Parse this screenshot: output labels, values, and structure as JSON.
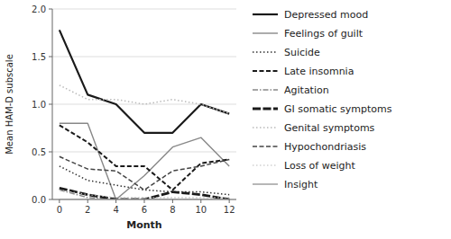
{
  "chart_data": {
    "type": "line",
    "x": [
      0,
      2,
      4,
      6,
      8,
      10,
      12
    ],
    "series": [
      {
        "name": "Depressed mood",
        "color": "#1a1a1a",
        "line_style": "solid",
        "values": [
          1.78,
          1.1,
          1.0,
          0.7,
          0.7,
          1.0,
          0.9
        ]
      },
      {
        "name": "Feelings of guilt",
        "color": "#888888",
        "line_style": "solid",
        "values": [
          0.8,
          0.8,
          0.0,
          0.25,
          0.55,
          0.65,
          0.35
        ]
      },
      {
        "name": "Suicide",
        "color": "#333333",
        "line_style": "dotted",
        "values": [
          0.35,
          0.2,
          0.15,
          0.1,
          0.08,
          0.08,
          0.05
        ]
      },
      {
        "name": "Late insomnia",
        "color": "#1a1a1a",
        "line_style": "dashed",
        "values": [
          0.78,
          0.6,
          0.35,
          0.35,
          0.1,
          0.38,
          0.42
        ]
      },
      {
        "name": "Agitation",
        "color": "#888888",
        "line_style": "dashdot",
        "values": [
          0.1,
          0.02,
          0.0,
          0.0,
          0.0,
          0.0,
          0.0
        ]
      },
      {
        "name": "GI somatic symptoms",
        "color": "#1a1a1a",
        "line_style": "longdash",
        "values": [
          0.12,
          0.05,
          0.0,
          0.0,
          0.08,
          0.05,
          0.0
        ]
      },
      {
        "name": "Genital symptoms",
        "color": "#bbbbbb",
        "line_style": "dotted",
        "values": [
          1.2,
          1.05,
          1.05,
          1.0,
          1.05,
          1.0,
          0.9
        ]
      },
      {
        "name": "Hypochondriasis",
        "color": "#444444",
        "line_style": "dashed",
        "values": [
          0.45,
          0.32,
          0.3,
          0.1,
          0.3,
          0.35,
          0.42
        ]
      },
      {
        "name": "Loss of weight",
        "color": "#bbbbbb",
        "line_style": "dotted",
        "values": [
          0.1,
          0.05,
          0.02,
          0.02,
          0.02,
          0.02,
          0.02
        ]
      },
      {
        "name": "Insight",
        "color": "#999999",
        "line_style": "solid",
        "values": [
          0.0,
          0.0,
          0.0,
          0.0,
          0.0,
          0.0,
          0.0
        ]
      }
    ],
    "xlim": [
      -0.5,
      12.5
    ],
    "ylim": [
      0.0,
      2.0
    ],
    "xticks": [
      0,
      2,
      4,
      6,
      8,
      10,
      12
    ],
    "yticks": [
      {
        "value": 0.0,
        "label": "0.0"
      },
      0.5,
      {
        "value": 1.0,
        "label": "1.0"
      },
      1.5,
      {
        "value": 2.0,
        "label": "2.0"
      }
    ],
    "xlabel": "Month",
    "ylabel": "Mean HAM-D subscale",
    "grid": true,
    "legend": "right"
  }
}
